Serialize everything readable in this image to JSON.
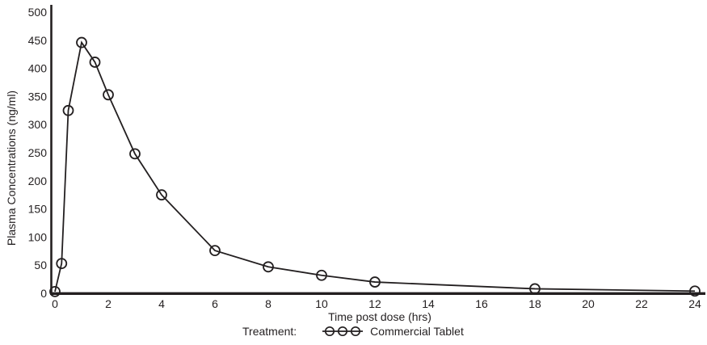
{
  "chart_data": {
    "type": "line",
    "title": "",
    "xlabel": "Time post dose (hrs)",
    "ylabel": "Plasma Concentrations (ng/ml)",
    "xlim": [
      0,
      24
    ],
    "ylim": [
      0,
      500
    ],
    "x_ticks": [
      0,
      2,
      4,
      6,
      8,
      10,
      12,
      14,
      16,
      18,
      20,
      22,
      24
    ],
    "y_ticks": [
      0,
      50,
      100,
      150,
      200,
      250,
      300,
      350,
      400,
      450,
      500
    ],
    "grid": false,
    "marker": "open-circle",
    "line_color": "#231f20",
    "text_color": "#231f20",
    "background": "#ffffff",
    "series": [
      {
        "name": "Commercial Tablet",
        "x": [
          0,
          0.25,
          0.5,
          1,
          1.5,
          2,
          3,
          4,
          6,
          8,
          10,
          12,
          18,
          24
        ],
        "y": [
          3,
          53,
          325,
          446,
          411,
          353,
          248,
          175,
          76,
          47,
          32,
          20,
          8,
          4
        ]
      }
    ],
    "legend": {
      "position": "bottom",
      "prefix": "Treatment:",
      "series_label": "Commercial Tablet",
      "marker": "line-through-circles"
    }
  }
}
